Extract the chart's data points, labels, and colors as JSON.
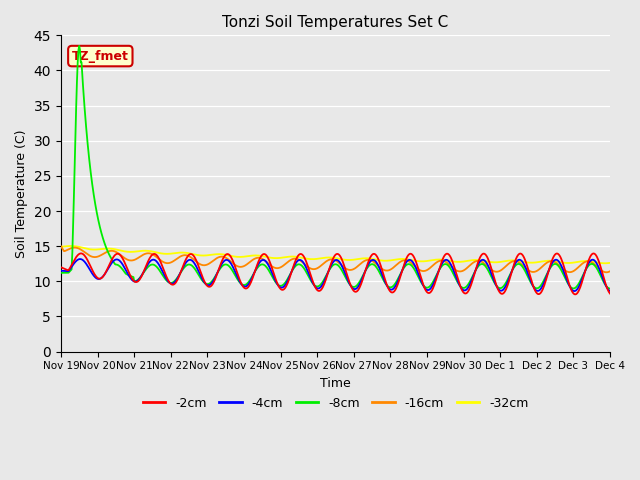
{
  "title": "Tonzi Soil Temperatures Set C",
  "xlabel": "Time",
  "ylabel": "Soil Temperature (C)",
  "ylim": [
    0,
    45
  ],
  "yticks": [
    0,
    5,
    10,
    15,
    20,
    25,
    30,
    35,
    40,
    45
  ],
  "fig_bg": "#e8e8e8",
  "plot_bg": "#e8e8e8",
  "annotation_label": "TZ_fmet",
  "annotation_bg": "#ffffcc",
  "annotation_border": "#cc0000",
  "annotation_text_color": "#cc0000",
  "colors": {
    "cm2": "#ff0000",
    "cm4": "#0000ff",
    "cm8": "#00ee00",
    "cm16": "#ff8800",
    "cm32": "#ffff00"
  },
  "legend_labels": [
    "-2cm",
    "-4cm",
    "-8cm",
    "-16cm",
    "-32cm"
  ],
  "xtick_labels": [
    "Nov 19",
    "Nov 20",
    "Nov 21",
    "Nov 22",
    "Nov 23",
    "Nov 24",
    "Nov 25",
    "Nov 26",
    "Nov 27",
    "Nov 28",
    "Nov 29",
    "Nov 30",
    "Dec 1",
    "Dec 2",
    "Dec 3",
    "Dec 4"
  ],
  "grid_color": "#ffffff",
  "n_days": 15,
  "n_points": 720,
  "spike_peak": 43.5,
  "spike_day": 0.5
}
